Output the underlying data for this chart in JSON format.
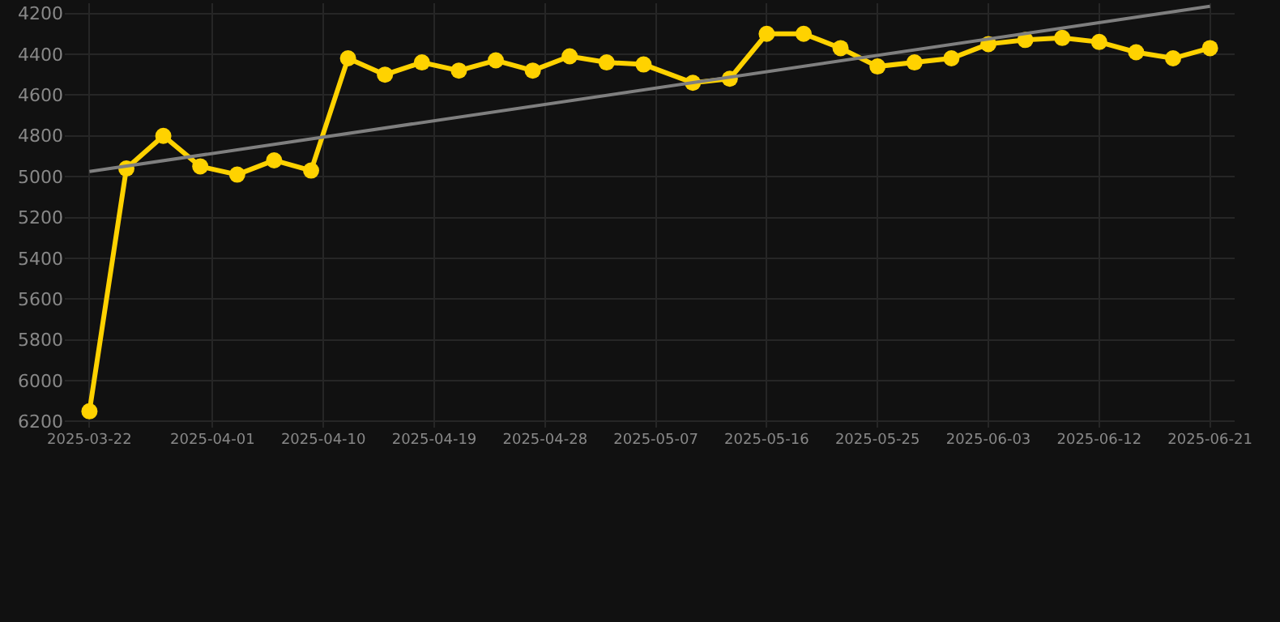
{
  "chart_data": {
    "type": "line",
    "x": [
      "2025-03-22",
      "2025-03-25",
      "2025-03-28",
      "2025-03-31",
      "2025-04-03",
      "2025-04-06",
      "2025-04-09",
      "2025-04-12",
      "2025-04-15",
      "2025-04-18",
      "2025-04-21",
      "2025-04-24",
      "2025-04-27",
      "2025-04-30",
      "2025-05-03",
      "2025-05-06",
      "2025-05-10",
      "2025-05-13",
      "2025-05-16",
      "2025-05-19",
      "2025-05-22",
      "2025-05-25",
      "2025-05-28",
      "2025-05-31",
      "2025-06-03",
      "2025-06-06",
      "2025-06-09",
      "2025-06-12",
      "2025-06-15",
      "2025-06-18",
      "2025-06-21"
    ],
    "series": [
      {
        "color": "#ffd200",
        "marker": "circle",
        "values": [
          6150,
          4960,
          4800,
          4950,
          4990,
          4920,
          4970,
          4420,
          4500,
          4440,
          4480,
          4430,
          4480,
          4410,
          4440,
          4450,
          4540,
          4520,
          4300,
          4300,
          4370,
          4460,
          4440,
          4420,
          4350,
          4330,
          4320,
          4340,
          4390,
          4420,
          4370
        ]
      },
      {
        "type": "line",
        "color": "#7f7f7f",
        "marker": "none",
        "x": [
          "2025-03-22",
          "2025-06-21"
        ],
        "values": [
          4975,
          4165
        ]
      }
    ],
    "xlim": [
      "2025-03-20",
      "2025-06-23"
    ],
    "xticks": [
      "2025-03-22",
      "2025-04-01",
      "2025-04-10",
      "2025-04-19",
      "2025-04-28",
      "2025-05-07",
      "2025-05-16",
      "2025-05-25",
      "2025-06-03",
      "2025-06-12",
      "2025-06-21"
    ],
    "ylim": [
      6230,
      4150
    ],
    "yticks": [
      4200,
      4400,
      4600,
      4800,
      5000,
      5200,
      5400,
      5600,
      5800,
      6000,
      6200
    ],
    "grid": true
  }
}
